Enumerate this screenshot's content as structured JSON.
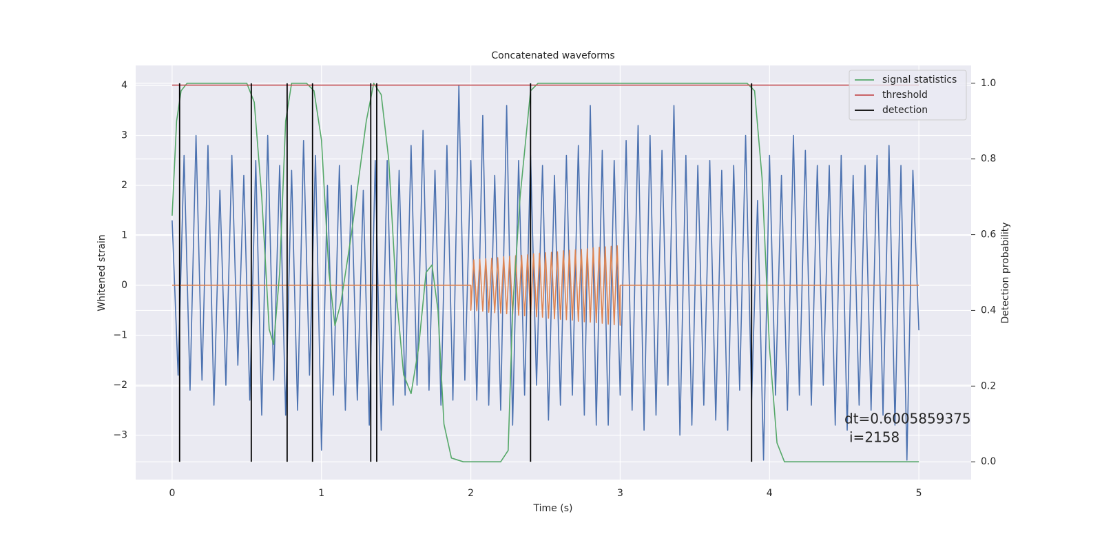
{
  "chart_data": {
    "type": "line",
    "title": "Concatenated waveforms",
    "x_label": "Time (s)",
    "y_label": "Whitened strain",
    "y2_label": "Detection probability",
    "xlim": [
      -0.244,
      5.35
    ],
    "ylim": [
      -3.89,
      4.4
    ],
    "y2lim": [
      -0.047,
      1.047
    ],
    "xticks": [
      0,
      1,
      2,
      3,
      4,
      5
    ],
    "yticks": [
      {
        "value": -3,
        "label": "−3"
      },
      {
        "value": -2,
        "label": "−2"
      },
      {
        "value": -1,
        "label": "−1"
      },
      0,
      1,
      2,
      3,
      4
    ],
    "y2ticks": [
      {
        "value": 0,
        "label": "0.0"
      },
      0.2,
      0.4,
      0.6,
      0.8,
      {
        "value": 1,
        "label": "1.0"
      }
    ],
    "grid": true,
    "legend": "upper right",
    "series": [
      {
        "color": "#4c72b0",
        "x": [
          0,
          0.04,
          0.08,
          0.12,
          0.16,
          0.2,
          0.24,
          0.28,
          0.32,
          0.36,
          0.4,
          0.44,
          0.48,
          0.52,
          0.56,
          0.6,
          0.64,
          0.68,
          0.72,
          0.76,
          0.8,
          0.84,
          0.88,
          0.92,
          0.96,
          1,
          1.04,
          1.08,
          1.12,
          1.16,
          1.2,
          1.24,
          1.28,
          1.32,
          1.36,
          1.4,
          1.44,
          1.48,
          1.52,
          1.56,
          1.6,
          1.64,
          1.68,
          1.72,
          1.76,
          1.8,
          1.84,
          1.88,
          1.92,
          1.96,
          2,
          2.04,
          2.08,
          2.12,
          2.16,
          2.2,
          2.24,
          2.28,
          2.32,
          2.36,
          2.4,
          2.44,
          2.48,
          2.52,
          2.56,
          2.6,
          2.64,
          2.68,
          2.72,
          2.76,
          2.8,
          2.84,
          2.88,
          2.92,
          2.96,
          3,
          3.04,
          3.08,
          3.12,
          3.16,
          3.2,
          3.24,
          3.28,
          3.32,
          3.36,
          3.4,
          3.44,
          3.48,
          3.52,
          3.56,
          3.6,
          3.64,
          3.68,
          3.72,
          3.76,
          3.8,
          3.84,
          3.88,
          3.92,
          3.96,
          4,
          4.04,
          4.08,
          4.12,
          4.16,
          4.2,
          4.24,
          4.28,
          4.32,
          4.36,
          4.4,
          4.44,
          4.48,
          4.52,
          4.56,
          4.6,
          4.64,
          4.68,
          4.72,
          4.76,
          4.8,
          4.84,
          4.88,
          4.92,
          4.96,
          5
        ],
        "values": [
          1.3,
          -1.8,
          2.6,
          -2.1,
          3.0,
          -1.9,
          2.8,
          -2.4,
          1.9,
          -2.0,
          2.6,
          -1.6,
          2.2,
          -2.3,
          2.5,
          -2.6,
          3.0,
          -1.9,
          2.4,
          -2.6,
          2.3,
          -2.5,
          2.9,
          -1.8,
          2.6,
          -3.3,
          2.0,
          -2.2,
          2.4,
          -2.5,
          2.0,
          -2.3,
          1.9,
          -2.8,
          2.5,
          -2.9,
          2.5,
          -2.4,
          2.3,
          -2.2,
          2.8,
          -2.0,
          3.1,
          -2.1,
          2.3,
          -2.4,
          2.8,
          -2.3,
          4.0,
          -1.9,
          2.5,
          -2.3,
          3.4,
          -2.4,
          2.2,
          -2.5,
          3.6,
          -2.8,
          2.5,
          -2.2,
          2.6,
          -2.0,
          2.4,
          -2.7,
          2.2,
          -2.4,
          2.6,
          -2.2,
          2.8,
          -2.6,
          3.6,
          -2.8,
          2.7,
          -2.8,
          2.5,
          -2.2,
          2.9,
          -2.5,
          3.2,
          -2.9,
          3.0,
          -2.6,
          2.7,
          -2.0,
          3.6,
          -3.0,
          2.6,
          -2.8,
          2.4,
          -2.4,
          2.5,
          -2.7,
          2.3,
          -2.9,
          2.4,
          -2.1,
          3.0,
          -2.3,
          1.7,
          -3.5,
          2.6,
          -2.2,
          2.2,
          -2.5,
          3.0,
          -2.2,
          2.7,
          -2.4,
          2.4,
          -2.0,
          2.4,
          -2.8,
          2.6,
          -2.9,
          2.2,
          -2.4,
          2.4,
          -2.5,
          2.6,
          -2.6,
          2.8,
          -2.8,
          2.4,
          -3.5,
          2.3,
          -0.9
        ]
      },
      {
        "color": "#dd8452",
        "x": [
          0,
          2,
          2,
          2.02,
          2.04,
          2.06,
          2.08,
          2.1,
          2.12,
          2.14,
          2.16,
          2.18,
          2.2,
          2.22,
          2.24,
          2.26,
          2.28,
          2.3,
          2.32,
          2.34,
          2.36,
          2.38,
          2.4,
          2.42,
          2.44,
          2.46,
          2.48,
          2.5,
          2.52,
          2.54,
          2.56,
          2.58,
          2.6,
          2.62,
          2.64,
          2.66,
          2.68,
          2.7,
          2.72,
          2.74,
          2.76,
          2.78,
          2.8,
          2.82,
          2.84,
          2.86,
          2.88,
          2.9,
          2.92,
          2.94,
          2.96,
          2.98,
          3,
          3,
          5
        ],
        "values": [
          0,
          0,
          -0.5,
          0.51,
          -0.51,
          0.52,
          -0.52,
          0.53,
          -0.54,
          0.54,
          -0.55,
          0.55,
          -0.56,
          0.57,
          -0.57,
          0.58,
          -0.58,
          0.59,
          -0.6,
          0.6,
          -0.61,
          0.61,
          -0.62,
          0.63,
          -0.63,
          0.64,
          -0.64,
          0.65,
          -0.66,
          0.66,
          -0.67,
          0.67,
          -0.68,
          0.69,
          -0.69,
          0.7,
          -0.7,
          0.71,
          -0.72,
          0.72,
          -0.73,
          0.73,
          -0.74,
          0.75,
          -0.75,
          0.76,
          -0.76,
          0.77,
          -0.78,
          0.78,
          -0.79,
          0.79,
          -0.8,
          0,
          0
        ]
      },
      {
        "name": "signal statistics",
        "color": "#55a868",
        "axis": "y2",
        "x": [
          0,
          0.03,
          0.06,
          0.1,
          0.5,
          0.55,
          0.6,
          0.65,
          0.68,
          0.72,
          0.76,
          0.8,
          0.9,
          0.95,
          1,
          1.05,
          1.09,
          1.13,
          1.2,
          1.25,
          1.3,
          1.35,
          1.4,
          1.45,
          1.5,
          1.55,
          1.6,
          1.65,
          1.7,
          1.74,
          1.78,
          1.82,
          1.87,
          1.95,
          2.2,
          2.25,
          2.28,
          2.33,
          2.4,
          2.45,
          3.85,
          3.9,
          3.95,
          4,
          4.05,
          4.1,
          5
        ],
        "values": [
          0.65,
          0.9,
          0.98,
          1,
          1,
          0.95,
          0.7,
          0.35,
          0.31,
          0.5,
          0.9,
          1,
          1,
          0.98,
          0.85,
          0.5,
          0.36,
          0.42,
          0.6,
          0.75,
          0.9,
          1,
          0.97,
          0.8,
          0.45,
          0.23,
          0.18,
          0.3,
          0.5,
          0.52,
          0.4,
          0.1,
          0.01,
          0,
          0,
          0.03,
          0.4,
          0.7,
          0.98,
          1,
          1,
          0.98,
          0.75,
          0.3,
          0.05,
          0,
          0
        ]
      },
      {
        "name": "threshold",
        "color": "#c44e52",
        "axis": "y2",
        "x": [
          0,
          5
        ],
        "values": [
          0.995,
          0.995
        ]
      }
    ],
    "detections": {
      "name": "detection",
      "color": "#000000",
      "x": [
        0.05,
        0.53,
        0.77,
        0.94,
        1.33,
        1.37,
        2.4,
        3.88
      ]
    },
    "annotation": [
      "dt=0.6005859375",
      "i=2158"
    ]
  }
}
